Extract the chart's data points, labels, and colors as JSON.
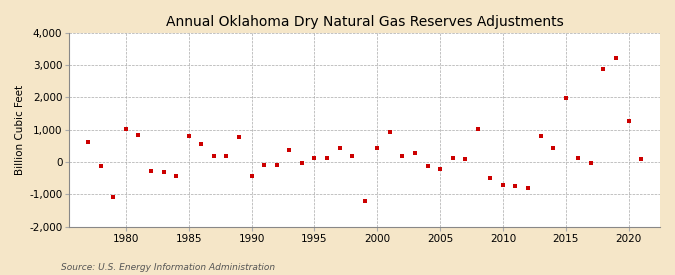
{
  "title": "Annual Oklahoma Dry Natural Gas Reserves Adjustments",
  "ylabel": "Billion Cubic Feet",
  "source": "Source: U.S. Energy Information Administration",
  "background_color": "#f5e6c8",
  "plot_bg_color": "#ffffff",
  "marker_color": "#cc0000",
  "years": [
    1977,
    1978,
    1979,
    1980,
    1981,
    1982,
    1983,
    1984,
    1985,
    1986,
    1987,
    1988,
    1989,
    1990,
    1991,
    1992,
    1993,
    1994,
    1995,
    1996,
    1997,
    1998,
    1999,
    2000,
    2001,
    2002,
    2003,
    2004,
    2005,
    2006,
    2007,
    2008,
    2009,
    2010,
    2011,
    2012,
    2013,
    2014,
    2015,
    2016,
    2017,
    2018,
    2019,
    2020,
    2021
  ],
  "values": [
    620,
    -120,
    -1080,
    1010,
    840,
    -280,
    -320,
    -430,
    810,
    560,
    190,
    200,
    790,
    -430,
    -90,
    -80,
    370,
    -30,
    110,
    120,
    440,
    180,
    -1200,
    420,
    940,
    200,
    280,
    -110,
    -210,
    120,
    100,
    1010,
    -500,
    -700,
    -750,
    -800,
    800,
    420,
    1970,
    130,
    -40,
    2890,
    3230,
    1260,
    100
  ],
  "ylim": [
    -2000,
    4000
  ],
  "xlim": [
    1975.5,
    2022.5
  ],
  "yticks": [
    -2000,
    -1000,
    0,
    1000,
    2000,
    3000,
    4000
  ],
  "xticks": [
    1980,
    1985,
    1990,
    1995,
    2000,
    2005,
    2010,
    2015,
    2020
  ],
  "title_fontsize": 10,
  "label_fontsize": 7.5,
  "tick_fontsize": 7.5,
  "source_fontsize": 6.5
}
